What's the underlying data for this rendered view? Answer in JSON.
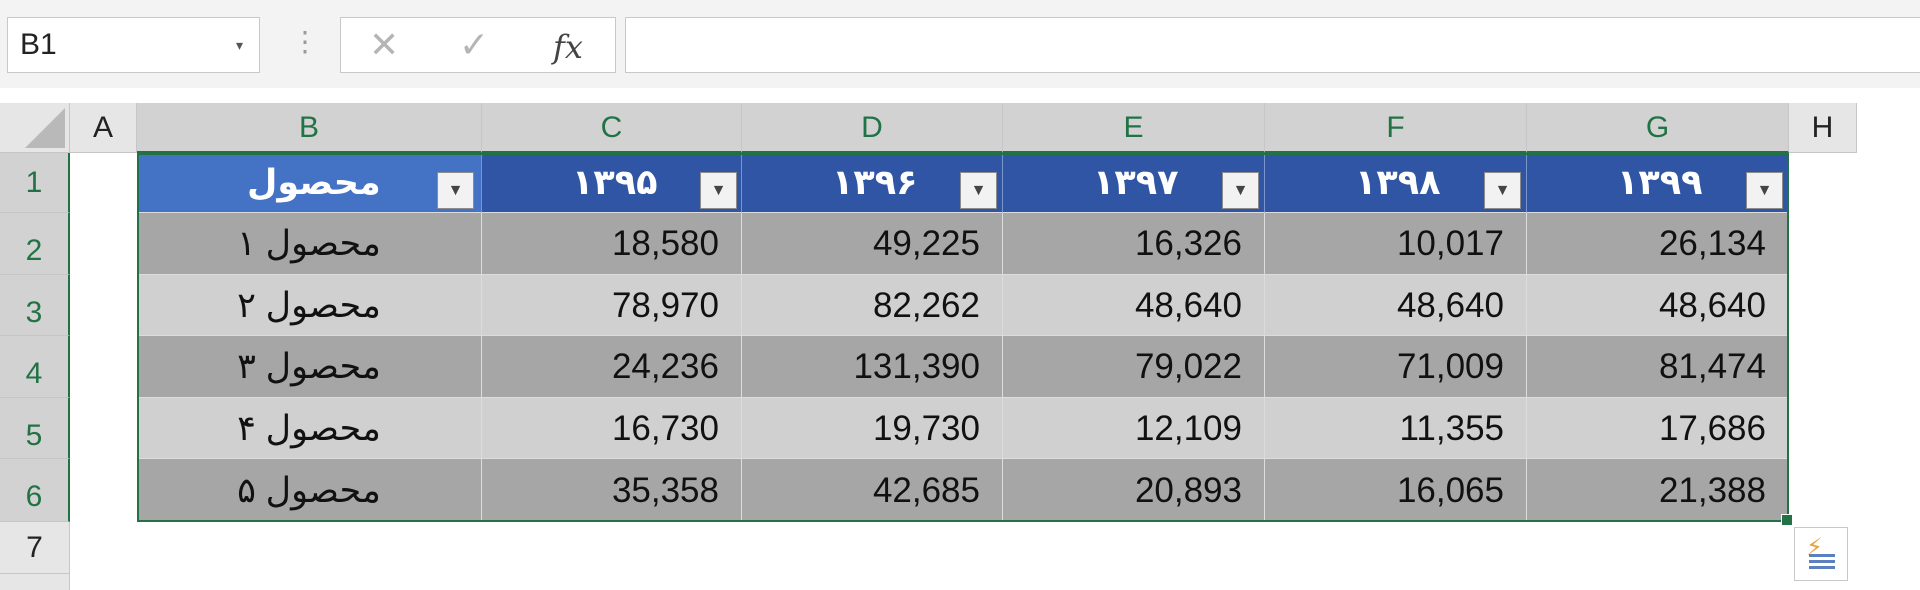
{
  "formula_bar": {
    "name_box": "B1",
    "name_box_dropdown": "▾",
    "cancel_icon": "✕",
    "enter_icon": "✓",
    "fx_label": "fx",
    "formula": ""
  },
  "column_headers": [
    "A",
    "B",
    "C",
    "D",
    "E",
    "F",
    "G",
    "H"
  ],
  "row_headers": [
    "1",
    "2",
    "3",
    "4",
    "5",
    "6",
    "7"
  ],
  "table": {
    "headers": [
      "محصول",
      "۱۳۹۵",
      "۱۳۹۶",
      "۱۳۹۷",
      "۱۳۹۸",
      "۱۳۹۹"
    ],
    "filter_glyph": "▼",
    "rows": [
      {
        "product": "محصول ۱",
        "values": [
          "18,580",
          "49,225",
          "16,326",
          "10,017",
          "26,134"
        ]
      },
      {
        "product": "محصول ۲",
        "values": [
          "78,970",
          "82,262",
          "48,640",
          "48,640",
          "48,640"
        ]
      },
      {
        "product": "محصول ۳",
        "values": [
          "24,236",
          "131,390",
          "79,022",
          "71,009",
          "81,474"
        ]
      },
      {
        "product": "محصول ۴",
        "values": [
          "16,730",
          "19,730",
          "12,109",
          "11,355",
          "17,686"
        ]
      },
      {
        "product": "محصول ۵",
        "values": [
          "35,358",
          "42,685",
          "20,893",
          "16,065",
          "21,388"
        ]
      }
    ]
  },
  "colors": {
    "header_first": "#4472c4",
    "header": "#2f55a4",
    "row_dark": "#a6a6a6",
    "row_light": "#d0d0d0",
    "selection": "#217346"
  },
  "quick_analysis_icon": "quick-analysis-icon"
}
